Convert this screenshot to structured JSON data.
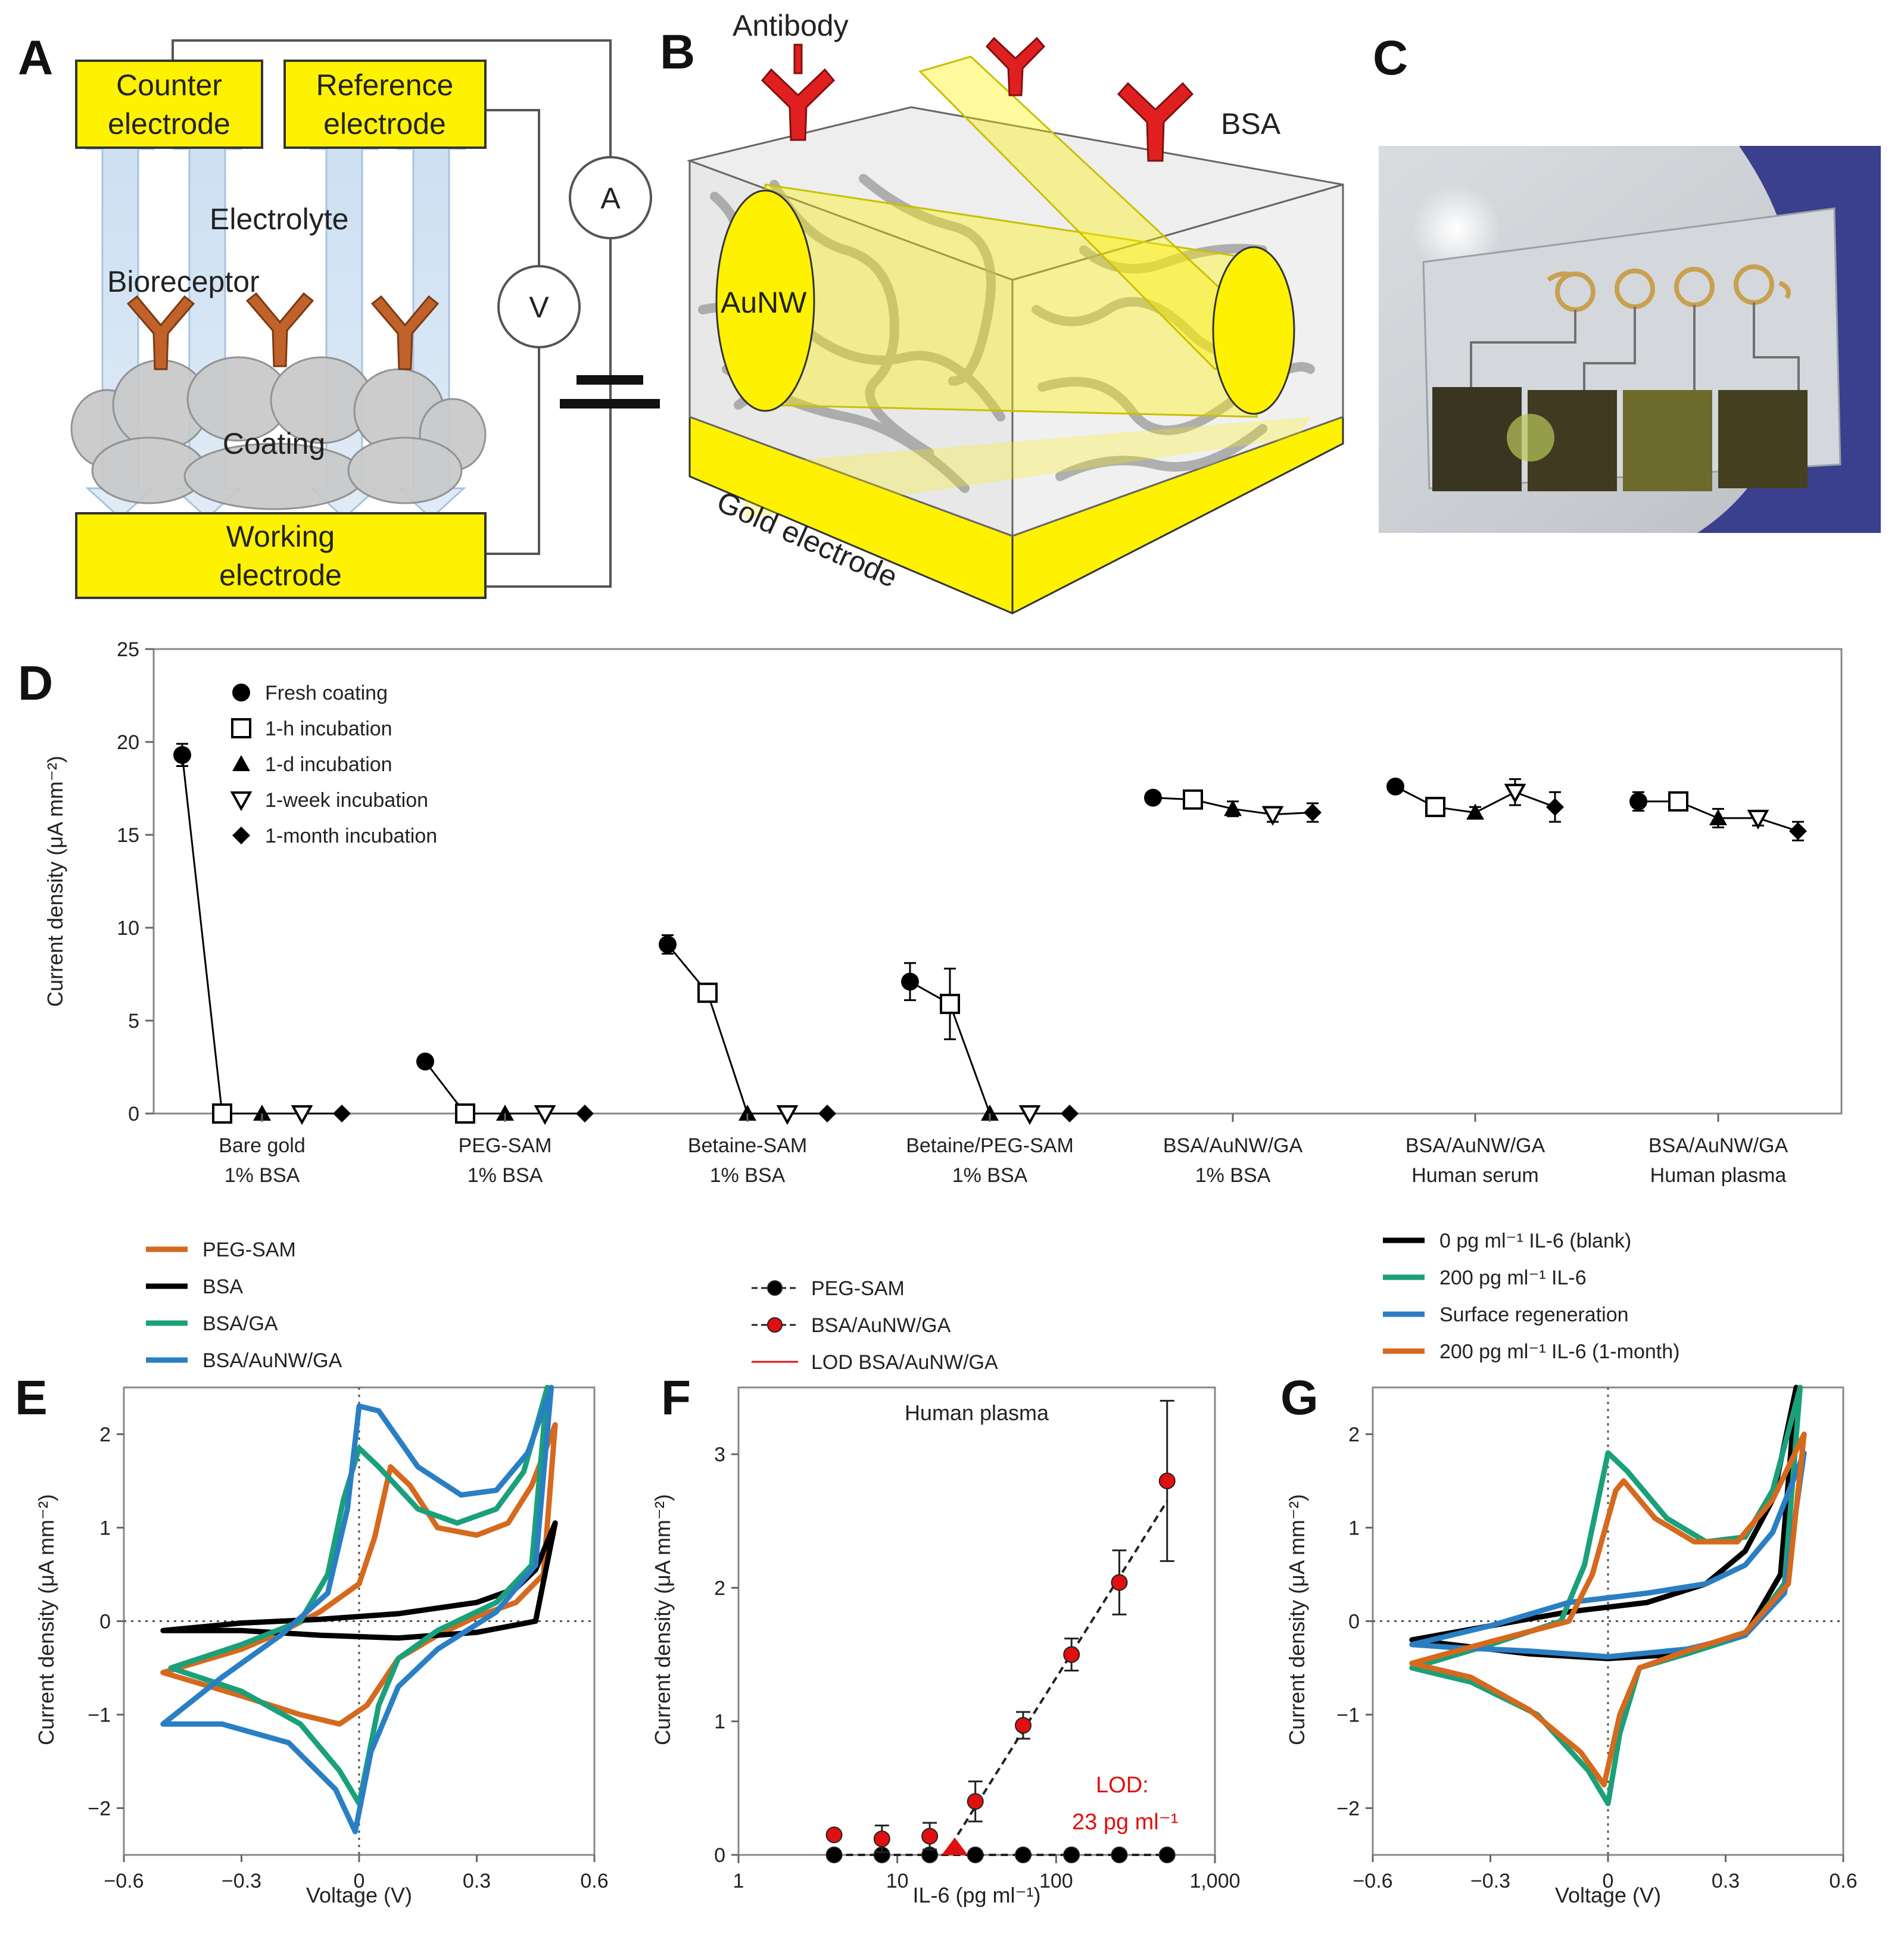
{
  "panels": {
    "A": {
      "letter": "A",
      "labels": {
        "counter": [
          "Counter",
          "electrode"
        ],
        "reference": [
          "Reference",
          "electrode"
        ],
        "electrolyte": "Electrolyte",
        "bioreceptor": "Bioreceptor",
        "coating": "Coating",
        "working": [
          "Working",
          "electrode"
        ],
        "ammeter": "A",
        "voltmeter": "V"
      }
    },
    "B": {
      "letter": "B",
      "labels": {
        "antibody": "Antibody",
        "bsa": "BSA",
        "aunw": "AuNW",
        "gold": "Gold electrode"
      }
    },
    "C": {
      "letter": "C"
    },
    "D": {
      "letter": "D"
    },
    "E": {
      "letter": "E"
    },
    "F": {
      "letter": "F"
    },
    "G": {
      "letter": "G"
    }
  },
  "colors": {
    "orange": "#d5691e",
    "black": "#000000",
    "green": "#1aa07a",
    "blue": "#2a7fc4",
    "red": "#e01010",
    "electrode_yellow": "#fff200",
    "antibody_red": "#e02020"
  },
  "chart_data": [
    {
      "panel": "D",
      "type": "scatter",
      "ylabel": "Current density (μA mm⁻²)",
      "ylim": [
        0,
        25
      ],
      "yticks": [
        0,
        5,
        10,
        15,
        20,
        25
      ],
      "groups": [
        {
          "label": [
            "Bare gold",
            "1% BSA"
          ],
          "values": [
            19.3,
            0,
            0,
            0,
            0
          ],
          "errors": [
            0.6,
            0,
            0,
            0,
            0
          ]
        },
        {
          "label": [
            "PEG-SAM",
            "1% BSA"
          ],
          "values": [
            2.8,
            0,
            0,
            0,
            0
          ],
          "errors": [
            0,
            0,
            0,
            0,
            0
          ]
        },
        {
          "label": [
            "Betaine-SAM",
            "1% BSA"
          ],
          "values": [
            9.1,
            6.5,
            0,
            0,
            0
          ],
          "errors": [
            0.5,
            0,
            0,
            0,
            0
          ]
        },
        {
          "label": [
            "Betaine/PEG-SAM",
            "1% BSA"
          ],
          "values": [
            7.1,
            5.9,
            0,
            0,
            0
          ],
          "errors": [
            1.0,
            1.9,
            0,
            0,
            0
          ]
        },
        {
          "label": [
            "BSA/AuNW/GA",
            "1% BSA"
          ],
          "values": [
            17.0,
            16.9,
            16.4,
            16.1,
            16.2
          ],
          "errors": [
            0,
            0.3,
            0.4,
            0.4,
            0.5
          ]
        },
        {
          "label": [
            "BSA/AuNW/GA",
            "Human serum"
          ],
          "values": [
            17.6,
            16.5,
            16.2,
            17.3,
            16.5
          ],
          "errors": [
            0,
            0.3,
            0.3,
            0.7,
            0.8
          ]
        },
        {
          "label": [
            "BSA/AuNW/GA",
            "Human plasma"
          ],
          "values": [
            16.8,
            16.8,
            15.9,
            15.9,
            15.2
          ],
          "errors": [
            0.5,
            0.4,
            0.5,
            0.4,
            0.5
          ]
        }
      ],
      "legend": [
        {
          "label": "Fresh coating",
          "marker": "circle"
        },
        {
          "label": "1-h incubation",
          "marker": "square-open"
        },
        {
          "label": "1-d incubation",
          "marker": "triangle"
        },
        {
          "label": "1-week incubation",
          "marker": "triangle-down-open"
        },
        {
          "label": "1-month incubation",
          "marker": "diamond"
        }
      ]
    },
    {
      "panel": "E",
      "type": "line",
      "xlabel": "Voltage (V)",
      "ylabel": "Current density (μA mm⁻²)",
      "xlim": [
        -0.6,
        0.6
      ],
      "ylim": [
        -2.5,
        2.5
      ],
      "xticks": [
        "−0.6",
        "−0.3",
        "0",
        "0.3",
        "0.6"
      ],
      "yticks": [
        "−2",
        "−1",
        "0",
        "1",
        "2"
      ],
      "series": [
        {
          "name": "PEG-SAM",
          "color": "orange",
          "upper": [
            [
              -0.5,
              -0.55
            ],
            [
              -0.3,
              -0.3
            ],
            [
              -0.2,
              -0.12
            ],
            [
              -0.1,
              0.1
            ],
            [
              0,
              0.4
            ],
            [
              0.04,
              0.9
            ],
            [
              0.08,
              1.65
            ],
            [
              0.13,
              1.45
            ],
            [
              0.2,
              1.0
            ],
            [
              0.3,
              0.92
            ],
            [
              0.38,
              1.05
            ],
            [
              0.44,
              1.45
            ],
            [
              0.5,
              2.1
            ]
          ],
          "lower": [
            [
              0.5,
              2.1
            ],
            [
              0.47,
              0.5
            ],
            [
              0.4,
              0.2
            ],
            [
              0.3,
              0.05
            ],
            [
              0.2,
              -0.15
            ],
            [
              0.1,
              -0.4
            ],
            [
              0.02,
              -0.9
            ],
            [
              -0.05,
              -1.1
            ],
            [
              -0.15,
              -1.0
            ],
            [
              -0.3,
              -0.8
            ],
            [
              -0.5,
              -0.55
            ]
          ]
        },
        {
          "name": "BSA",
          "color": "black",
          "upper": [
            [
              -0.5,
              -0.1
            ],
            [
              -0.3,
              -0.02
            ],
            [
              -0.1,
              0.02
            ],
            [
              0.1,
              0.08
            ],
            [
              0.3,
              0.2
            ],
            [
              0.4,
              0.35
            ],
            [
              0.45,
              0.55
            ],
            [
              0.5,
              1.05
            ]
          ],
          "lower": [
            [
              0.5,
              1.05
            ],
            [
              0.45,
              0.0
            ],
            [
              0.3,
              -0.12
            ],
            [
              0.1,
              -0.18
            ],
            [
              -0.1,
              -0.15
            ],
            [
              -0.3,
              -0.1
            ],
            [
              -0.5,
              -0.1
            ]
          ]
        },
        {
          "name": "BSA/GA",
          "color": "green",
          "upper": [
            [
              -0.48,
              -0.5
            ],
            [
              -0.3,
              -0.25
            ],
            [
              -0.15,
              0.0
            ],
            [
              -0.08,
              0.5
            ],
            [
              -0.04,
              1.3
            ],
            [
              0,
              1.85
            ],
            [
              0.05,
              1.65
            ],
            [
              0.15,
              1.2
            ],
            [
              0.25,
              1.05
            ],
            [
              0.35,
              1.2
            ],
            [
              0.42,
              1.6
            ],
            [
              0.48,
              2.5
            ]
          ],
          "lower": [
            [
              0.48,
              2.5
            ],
            [
              0.44,
              0.6
            ],
            [
              0.35,
              0.2
            ],
            [
              0.2,
              -0.1
            ],
            [
              0.1,
              -0.4
            ],
            [
              0.05,
              -0.9
            ],
            [
              0,
              -1.95
            ],
            [
              -0.05,
              -1.6
            ],
            [
              -0.15,
              -1.1
            ],
            [
              -0.3,
              -0.75
            ],
            [
              -0.48,
              -0.5
            ]
          ]
        },
        {
          "name": "BSA/AuNW/GA",
          "color": "blue",
          "upper": [
            [
              -0.5,
              -1.1
            ],
            [
              -0.35,
              -0.6
            ],
            [
              -0.2,
              -0.15
            ],
            [
              -0.08,
              0.3
            ],
            [
              -0.03,
              1.2
            ],
            [
              0,
              2.3
            ],
            [
              0.05,
              2.25
            ],
            [
              0.15,
              1.65
            ],
            [
              0.26,
              1.35
            ],
            [
              0.35,
              1.4
            ],
            [
              0.43,
              1.8
            ],
            [
              0.49,
              2.5
            ]
          ],
          "lower": [
            [
              0.49,
              2.5
            ],
            [
              0.45,
              0.6
            ],
            [
              0.35,
              0.1
            ],
            [
              0.2,
              -0.3
            ],
            [
              0.1,
              -0.7
            ],
            [
              0.03,
              -1.4
            ],
            [
              -0.01,
              -2.25
            ],
            [
              -0.06,
              -1.8
            ],
            [
              -0.18,
              -1.3
            ],
            [
              -0.35,
              -1.1
            ],
            [
              -0.5,
              -1.1
            ]
          ]
        }
      ]
    },
    {
      "panel": "F",
      "type": "scatter",
      "title": "Human plasma",
      "xlabel": "IL-6 (pg ml⁻¹)",
      "ylabel": "Current density (μA mm⁻²)",
      "xscale": "log",
      "xlim": [
        1,
        1000
      ],
      "ylim": [
        0,
        3.5
      ],
      "xticks": [
        "1",
        "10",
        "100",
        "1,000"
      ],
      "yticks": [
        "0",
        "1",
        "2",
        "3"
      ],
      "x": [
        4,
        8,
        16,
        31,
        62,
        125,
        250,
        500
      ],
      "series": [
        {
          "name": "PEG-SAM",
          "color": "black",
          "values": [
            0,
            0,
            0,
            0,
            0,
            0,
            0,
            0
          ],
          "errors": [
            0,
            0,
            0,
            0,
            0,
            0,
            0,
            0
          ]
        },
        {
          "name": "BSA/AuNW/GA",
          "color": "red",
          "values": [
            0.15,
            0.12,
            0.14,
            0.4,
            0.97,
            1.5,
            2.04,
            2.8
          ],
          "errors": [
            0,
            0.1,
            0.1,
            0.15,
            0.1,
            0.12,
            0.24,
            0.6
          ]
        }
      ],
      "fit_line": {
        "x": [
          20,
          500
        ],
        "values": [
          0,
          2.65
        ]
      },
      "lod": {
        "label": "LOD BSA/AuNW/GA",
        "value": 23,
        "text": [
          "LOD:",
          "23 pg ml⁻¹"
        ]
      }
    },
    {
      "panel": "G",
      "type": "line",
      "xlabel": "Voltage (V)",
      "ylabel": "Current density (μA mm⁻²)",
      "xlim": [
        -0.6,
        0.6
      ],
      "ylim": [
        -2.5,
        2.5
      ],
      "xticks": [
        "−0.6",
        "−0.3",
        "0",
        "0.3",
        "0.6"
      ],
      "yticks": [
        "−2",
        "−1",
        "0",
        "1",
        "2"
      ],
      "series": [
        {
          "name": "0 pg ml⁻¹ IL-6 (blank)",
          "color": "black",
          "upper": [
            [
              -0.5,
              -0.2
            ],
            [
              -0.3,
              -0.05
            ],
            [
              -0.1,
              0.1
            ],
            [
              0.1,
              0.2
            ],
            [
              0.25,
              0.4
            ],
            [
              0.35,
              0.75
            ],
            [
              0.42,
              1.3
            ],
            [
              0.48,
              2.5
            ]
          ],
          "lower": [
            [
              0.48,
              2.5
            ],
            [
              0.44,
              0.5
            ],
            [
              0.35,
              -0.15
            ],
            [
              0.2,
              -0.35
            ],
            [
              0,
              -0.4
            ],
            [
              -0.2,
              -0.35
            ],
            [
              -0.4,
              -0.25
            ],
            [
              -0.5,
              -0.2
            ]
          ]
        },
        {
          "name": "200 pg ml⁻¹ IL-6",
          "color": "green",
          "upper": [
            [
              -0.5,
              -0.5
            ],
            [
              -0.3,
              -0.25
            ],
            [
              -0.12,
              0.0
            ],
            [
              -0.06,
              0.6
            ],
            [
              0,
              1.8
            ],
            [
              0.05,
              1.6
            ],
            [
              0.15,
              1.1
            ],
            [
              0.25,
              0.85
            ],
            [
              0.35,
              0.9
            ],
            [
              0.42,
              1.4
            ],
            [
              0.49,
              2.5
            ]
          ],
          "lower": [
            [
              0.49,
              2.5
            ],
            [
              0.45,
              0.4
            ],
            [
              0.35,
              -0.15
            ],
            [
              0.2,
              -0.35
            ],
            [
              0.08,
              -0.5
            ],
            [
              0.03,
              -1.2
            ],
            [
              0,
              -1.95
            ],
            [
              -0.05,
              -1.6
            ],
            [
              -0.18,
              -1.0
            ],
            [
              -0.35,
              -0.65
            ],
            [
              -0.5,
              -0.5
            ]
          ]
        },
        {
          "name": "Surface regeneration",
          "color": "blue",
          "upper": [
            [
              -0.5,
              -0.25
            ],
            [
              -0.3,
              -0.05
            ],
            [
              -0.1,
              0.2
            ],
            [
              0.1,
              0.3
            ],
            [
              0.25,
              0.4
            ],
            [
              0.35,
              0.6
            ],
            [
              0.42,
              0.95
            ],
            [
              0.5,
              1.8
            ]
          ],
          "lower": [
            [
              0.5,
              1.8
            ],
            [
              0.45,
              0.3
            ],
            [
              0.35,
              -0.15
            ],
            [
              0.2,
              -0.3
            ],
            [
              0,
              -0.38
            ],
            [
              -0.2,
              -0.32
            ],
            [
              -0.4,
              -0.28
            ],
            [
              -0.5,
              -0.25
            ]
          ]
        },
        {
          "name": "200 pg ml⁻¹ IL-6 (1-month)",
          "color": "orange",
          "upper": [
            [
              -0.5,
              -0.45
            ],
            [
              -0.3,
              -0.22
            ],
            [
              -0.1,
              0.0
            ],
            [
              -0.04,
              0.5
            ],
            [
              0.02,
              1.4
            ],
            [
              0.04,
              1.5
            ],
            [
              0.12,
              1.1
            ],
            [
              0.22,
              0.85
            ],
            [
              0.33,
              0.85
            ],
            [
              0.42,
              1.3
            ],
            [
              0.5,
              2.0
            ]
          ],
          "lower": [
            [
              0.5,
              2.0
            ],
            [
              0.46,
              0.4
            ],
            [
              0.35,
              -0.12
            ],
            [
              0.2,
              -0.32
            ],
            [
              0.08,
              -0.5
            ],
            [
              0.03,
              -1.0
            ],
            [
              -0.01,
              -1.75
            ],
            [
              -0.07,
              -1.4
            ],
            [
              -0.2,
              -0.95
            ],
            [
              -0.35,
              -0.6
            ],
            [
              -0.5,
              -0.45
            ]
          ]
        }
      ]
    }
  ]
}
